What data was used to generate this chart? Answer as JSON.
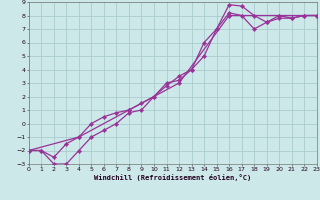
{
  "xlabel": "Windchill (Refroidissement éolien,°C)",
  "background_color": "#cce8e8",
  "grid_color": "#aacccc",
  "line_color": "#993399",
  "xlim": [
    0,
    23
  ],
  "ylim": [
    -3,
    9
  ],
  "xticks": [
    0,
    1,
    2,
    3,
    4,
    5,
    6,
    7,
    8,
    9,
    10,
    11,
    12,
    13,
    14,
    15,
    16,
    17,
    18,
    19,
    20,
    21,
    22,
    23
  ],
  "yticks": [
    -3,
    -2,
    -1,
    0,
    1,
    2,
    3,
    4,
    5,
    6,
    7,
    8,
    9
  ],
  "series1_x": [
    0,
    1,
    2,
    3,
    4,
    5,
    6,
    7,
    8,
    9,
    10,
    11,
    12,
    13,
    14,
    15,
    16,
    17,
    18,
    19,
    20,
    21,
    22,
    23
  ],
  "series1_y": [
    -2,
    -2,
    -3,
    -3,
    -2,
    -1,
    -0.5,
    0,
    0.8,
    1,
    2,
    3,
    3.2,
    4,
    5,
    7,
    8.8,
    8.7,
    8,
    7.5,
    8,
    7.8,
    8,
    8
  ],
  "series2_x": [
    0,
    1,
    2,
    3,
    4,
    5,
    6,
    7,
    8,
    9,
    10,
    11,
    12,
    13,
    14,
    15,
    16,
    17,
    18,
    19,
    20,
    21,
    22,
    23
  ],
  "series2_y": [
    -2,
    -2,
    -2.5,
    -1.5,
    -1,
    0,
    0.5,
    0.8,
    1,
    1.5,
    2,
    2.8,
    3.5,
    4,
    6,
    7,
    8.2,
    8,
    7,
    7.5,
    7.8,
    7.8,
    8,
    8
  ],
  "series3_x": [
    0,
    4,
    8,
    12,
    16,
    20,
    23
  ],
  "series3_y": [
    -2,
    -1,
    1,
    3,
    8,
    8,
    8
  ]
}
